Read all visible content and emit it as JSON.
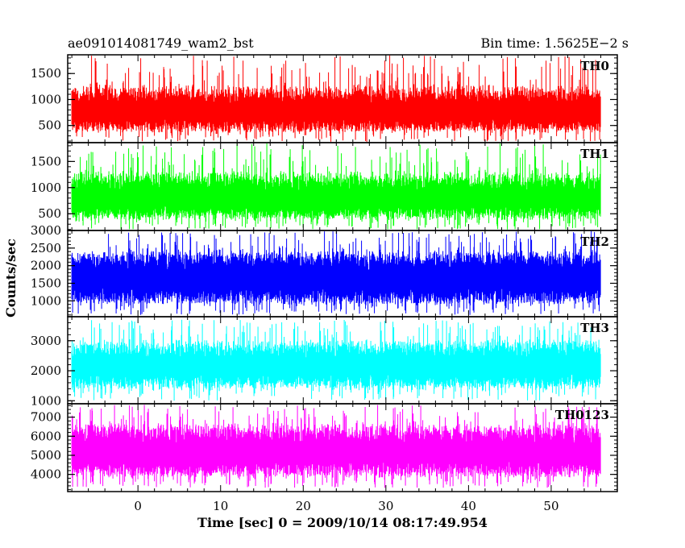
{
  "header": {
    "left_title": "ae091014081749_wam2_bst",
    "right_title": "Bin time: 1.5625E−2 s"
  },
  "chart_data": {
    "type": "line",
    "title": "ae091014081749_wam2_bst",
    "subtitle": "Bin time: 1.5625E−2 s",
    "xlabel": "Time [sec] 0 = 2009/10/14 08:17:49.954",
    "ylabel": "Counts/sec",
    "xlim": [
      -8.5,
      58
    ],
    "x_data_range": [
      -8,
      56
    ],
    "x_ticks": [
      0,
      10,
      20,
      30,
      40,
      50
    ],
    "x_tick_labels": [
      "0",
      "10",
      "20",
      "30",
      "40",
      "50"
    ],
    "x_minor_step": 2,
    "grid": false,
    "panels": [
      {
        "name": "TH0",
        "color": "#ff0000",
        "ylim": [
          170,
          1860
        ],
        "y_ticks": [
          500,
          1000,
          1500
        ],
        "y_tick_labels": [
          "500",
          "1000",
          "1500"
        ],
        "y_minor_step": 100,
        "band_low": 430,
        "band_high": 1120,
        "spike_low": 180,
        "spike_high": 1850
      },
      {
        "name": "TH1",
        "color": "#00ff00",
        "ylim": [
          180,
          1860
        ],
        "y_ticks": [
          500,
          1000,
          1500
        ],
        "y_tick_labels": [
          "500",
          "1000",
          "1500"
        ],
        "y_minor_step": 100,
        "band_low": 440,
        "band_high": 1160,
        "spike_low": 200,
        "spike_high": 1850
      },
      {
        "name": "TH2",
        "color": "#0000ff",
        "ylim": [
          550,
          3000
        ],
        "y_ticks": [
          1000,
          1500,
          2000,
          2500,
          3000
        ],
        "y_tick_labels": [
          "1000",
          "1500",
          "2000",
          "2500",
          "3000"
        ],
        "y_minor_step": 100,
        "band_low": 1000,
        "band_high": 2300,
        "spike_low": 600,
        "spike_high": 2990
      },
      {
        "name": "TH3",
        "color": "#00ffff",
        "ylim": [
          900,
          3800
        ],
        "y_ticks": [
          1000,
          2000,
          3000
        ],
        "y_tick_labels": [
          "1000",
          "2000",
          "3000"
        ],
        "y_minor_step": 200,
        "band_low": 1500,
        "band_high": 2850,
        "spike_low": 1000,
        "spike_high": 3700
      },
      {
        "name": "TH0123",
        "color": "#ff00ff",
        "ylim": [
          3100,
          7700
        ],
        "y_ticks": [
          4000,
          5000,
          6000,
          7000
        ],
        "y_tick_labels": [
          "4000",
          "5000",
          "6000",
          "7000"
        ],
        "y_minor_step": 200,
        "band_low": 4000,
        "band_high": 6400,
        "spike_low": 3300,
        "spike_high": 7650
      }
    ]
  }
}
